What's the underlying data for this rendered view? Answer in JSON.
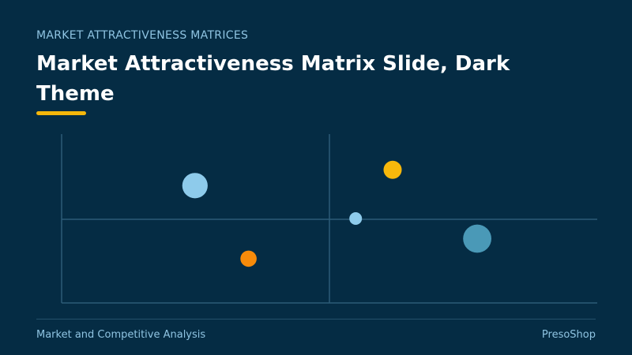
{
  "slide": {
    "eyebrow": "MARKET ATTRACTIVENESS MATRICES",
    "title": "Market Attractiveness Matrix Slide, Dark Theme",
    "footer_left": "Market and Competitive Analysis",
    "footer_right": "PresoShop"
  },
  "colors": {
    "background": "#052c44",
    "accent": "#f5b70b",
    "grid": "#2c5b76",
    "light_blue": "#8ecbeb",
    "orange": "#f78b0a",
    "yellow": "#f8b80b",
    "teal": "#4a99b7"
  },
  "chart_data": {
    "type": "scatter",
    "xlim": [
      0,
      1
    ],
    "ylim": [
      0,
      1
    ],
    "points": [
      {
        "x": 0.249,
        "y": 0.695,
        "r": 0.7,
        "color": "#8ecbeb"
      },
      {
        "x": 0.349,
        "y": 0.262,
        "r": 0.45,
        "color": "#f78b0a"
      },
      {
        "x": 0.618,
        "y": 0.789,
        "r": 0.5,
        "color": "#f8b80b"
      },
      {
        "x": 0.549,
        "y": 0.5,
        "r": 0.35,
        "color": "#8ecbeb"
      },
      {
        "x": 0.776,
        "y": 0.381,
        "r": 0.78,
        "color": "#4a99b7"
      }
    ]
  }
}
